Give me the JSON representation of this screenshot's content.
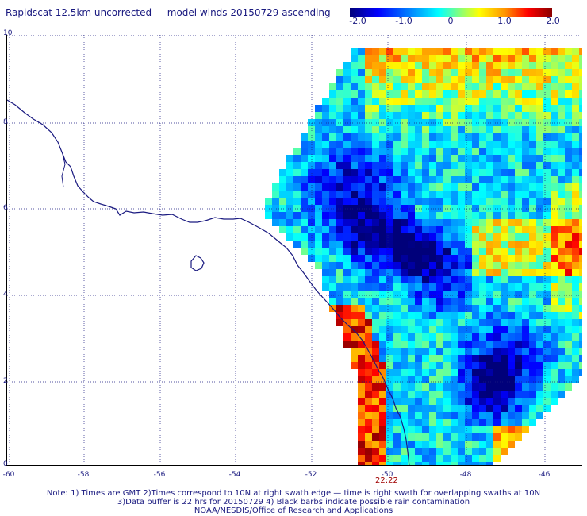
{
  "title": "Rapidscat 12.5km uncorrected — model winds 20150729 ascending",
  "colorbar": {
    "labels": [
      "-2.0",
      "-1.0",
      "0",
      "1.0",
      "2.0"
    ],
    "min": -2.0,
    "max": 2.0
  },
  "map": {
    "lat_labels": [
      "10",
      "8",
      "6",
      "4",
      "2",
      "0"
    ],
    "lon_labels": [
      "-60",
      "-58",
      "-56",
      "-54",
      "-52",
      "-50",
      "-48",
      "-46"
    ],
    "lat_range": [
      0,
      10
    ],
    "lon_range": [
      -60,
      -44.5
    ],
    "grid": true,
    "coastline_color": "#1a1a80",
    "grid_color": "#1a1a80"
  },
  "pass_time": "22:22",
  "notes": {
    "line1": "Note: 1) Times are GMT 2)Times correspond to 10N at right swath edge — time is right swath for overlapping swaths at 10N",
    "line2": "3)Data buffer is 22 hrs for 20150729 4) Black barbs indicate possible rain contamination",
    "line3": "NOAA/NESDIS/Office of Research and Applications"
  }
}
